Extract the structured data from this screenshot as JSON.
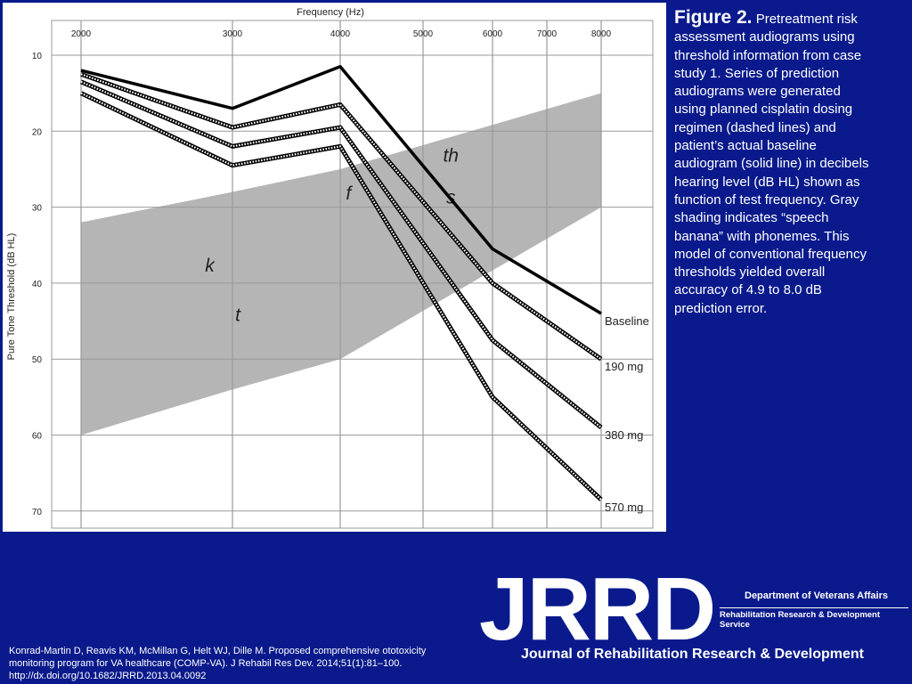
{
  "caption": {
    "title": "Figure 2.",
    "lines": [
      " Pretreatment risk",
      "assessment audiograms using",
      "threshold information from case",
      "study 1. Series of prediction",
      "audiograms were generated",
      "using planned cisplatin dosing",
      "regimen (dashed lines) and",
      "patient’s actual baseline",
      "audiogram (solid line) in decibels",
      "hearing level (dB HL) shown as",
      "function of test frequency. Gray",
      "shading indicates “speech",
      "banana” with phonemes. This",
      "model of conventional frequency",
      "thresholds yielded overall",
      "accuracy of 4.9 to 8.0 dB",
      "prediction error."
    ]
  },
  "citation": {
    "lines": [
      "Konrad-Martin D, Reavis KM, McMillan G, Helt WJ, Dille M. Proposed comprehensive ototoxicity",
      "monitoring program for VA healthcare (COMP-VA). J Rehabil Res Dev. 2014;51(1):81–100.",
      "http://dx.doi.org/10.1682/JRRD.2013.04.0092"
    ]
  },
  "logo": {
    "text": "JRRD",
    "department": "Department of Veterans Affairs",
    "service": "Rehabilitation Research & Development Service",
    "full_name": "Journal of Rehabilitation Research & Development"
  },
  "colors": {
    "background": "#0a1a8c",
    "panel": "#ffffff",
    "shading": "#b5b5b5",
    "line": "#000000",
    "grid": "#9a9a9a"
  },
  "chart_data": {
    "type": "line",
    "xlabel": "Frequency (Hz)",
    "ylabel": "Pure Tone Threshold (dB HL)",
    "x_ticks": [
      2000,
      3000,
      4000,
      5000,
      6000,
      7000,
      8000
    ],
    "y_ticks": [
      10,
      20,
      30,
      40,
      50,
      60,
      70
    ],
    "ylim": [
      8,
      71
    ],
    "y_inverted": true,
    "grid": true,
    "x": [
      2000,
      3000,
      4000,
      6000,
      8000
    ],
    "series": [
      {
        "name": "Baseline",
        "style": "solid",
        "values": [
          12,
          17,
          11.5,
          35.5,
          44
        ]
      },
      {
        "name": "190 mg",
        "style": "dashed",
        "values": [
          12.5,
          19.5,
          16.5,
          40,
          50
        ]
      },
      {
        "name": "380 mg",
        "style": "dashed",
        "values": [
          13.5,
          22,
          19.5,
          47.5,
          59
        ]
      },
      {
        "name": "570 mg",
        "style": "dashed",
        "values": [
          15,
          24.5,
          22,
          55,
          68.5
        ]
      }
    ],
    "speech_banana": {
      "upper": [
        [
          2000,
          32
        ],
        [
          3000,
          28
        ],
        [
          4000,
          25
        ],
        [
          8000,
          15
        ]
      ],
      "lower": [
        [
          2000,
          60
        ],
        [
          3000,
          54
        ],
        [
          4000,
          50
        ],
        [
          8000,
          30
        ]
      ]
    },
    "phonemes": [
      {
        "label": "k",
        "x": 2850,
        "y": 38.5
      },
      {
        "label": "t",
        "x": 3050,
        "y": 45
      },
      {
        "label": "f",
        "x": 4100,
        "y": 29
      },
      {
        "label": "th",
        "x": 5400,
        "y": 24
      },
      {
        "label": "s",
        "x": 5400,
        "y": 29.5
      }
    ]
  }
}
